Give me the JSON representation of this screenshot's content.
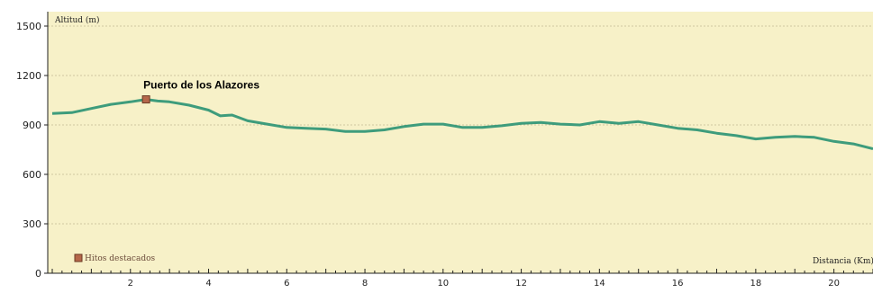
{
  "chart_data": {
    "type": "line",
    "ylabel": "Altitud (m)",
    "xlabel": "Distancia (Km)",
    "ylim": [
      0,
      1500
    ],
    "xlim": [
      0,
      21
    ],
    "yticks": [
      0,
      300,
      600,
      900,
      1200,
      1500
    ],
    "xticks": [
      2,
      4,
      6,
      8,
      10,
      12,
      14,
      16,
      18,
      20
    ],
    "grid": true,
    "colors": {
      "background": "#f7f1c8",
      "line": "#3e9c7c",
      "grid": "#cfc7a0",
      "marker": "#b5674a"
    },
    "series": [
      {
        "x": [
          0,
          0.5,
          1,
          1.5,
          2,
          2.4,
          2.7,
          3,
          3.5,
          4,
          4.3,
          4.6,
          5,
          5.5,
          6,
          6.5,
          7,
          7.5,
          8,
          8.5,
          9,
          9.5,
          10,
          10.5,
          11,
          11.5,
          12,
          12.5,
          13,
          13.5,
          14,
          14.5,
          15,
          15.5,
          16,
          16.5,
          17,
          17.5,
          18,
          18.5,
          19,
          19.5,
          20,
          20.5,
          21
        ],
        "values": [
          970,
          975,
          1000,
          1025,
          1040,
          1055,
          1045,
          1040,
          1020,
          990,
          955,
          960,
          925,
          905,
          885,
          880,
          875,
          860,
          860,
          870,
          890,
          905,
          905,
          885,
          885,
          895,
          910,
          915,
          905,
          900,
          920,
          910,
          920,
          900,
          880,
          870,
          850,
          835,
          815,
          825,
          830,
          825,
          800,
          785,
          755
        ]
      }
    ],
    "annotations": [
      {
        "label": "Puerto de los Alazores",
        "x": 2.4,
        "y": 1055
      }
    ],
    "legend": {
      "label": "Hitos destacados",
      "position": "bottom-left"
    }
  }
}
